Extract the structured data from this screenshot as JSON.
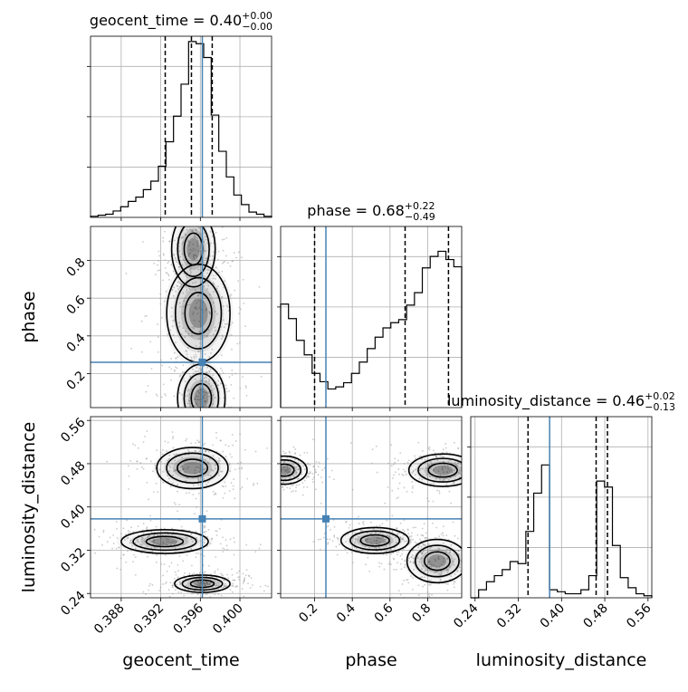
{
  "chart_data": {
    "type": "corner",
    "parameters": [
      "geocent_time",
      "phase",
      "luminosity_distance"
    ],
    "truths": {
      "geocent_time": 0.3962,
      "phase": 0.26,
      "luminosity_distance": 0.378
    },
    "colors": {
      "truth": "#4682b4",
      "line": "#000000",
      "grid": "#b0b0b0",
      "points": "#9e9e9e"
    },
    "titles": [
      {
        "param": "geocent_time",
        "prefix": "geocent_time = ",
        "median": "0.40",
        "plus": "+0.00",
        "minus": "−0.00"
      },
      {
        "param": "phase",
        "prefix": "phase = ",
        "median": "0.68",
        "plus": "+0.22",
        "minus": "−0.49"
      },
      {
        "param": "luminosity_distance",
        "prefix": "luminosity_distance = ",
        "median": "0.46",
        "plus": "+0.02",
        "minus": "−0.13"
      }
    ],
    "axes": {
      "geocent_time": {
        "range": [
          0.3849,
          0.4032
        ],
        "ticks": [
          "0.388",
          "0.392",
          "0.396",
          "0.400"
        ],
        "tick_values": [
          0.388,
          0.392,
          0.396,
          0.4
        ]
      },
      "phase": {
        "range": [
          0.02,
          0.98
        ],
        "ticks": [
          "0.2",
          "0.4",
          "0.6",
          "0.8"
        ],
        "tick_values": [
          0.2,
          0.4,
          0.6,
          0.8
        ]
      },
      "luminosity_distance": {
        "range": [
          0.232,
          0.567
        ],
        "ticks": [
          "0.24",
          "0.32",
          "0.40",
          "0.48",
          "0.56"
        ],
        "tick_values": [
          0.24,
          0.32,
          0.4,
          0.48,
          0.56
        ]
      }
    },
    "marginals": [
      {
        "param": "geocent_time",
        "quantiles": [
          0.39245,
          0.3951,
          0.3972
        ],
        "counts": [
          1,
          2,
          3,
          6,
          10,
          15,
          19,
          26,
          34,
          48,
          71,
          95,
          125,
          165,
          163,
          150,
          96,
          62,
          38,
          21,
          12,
          5,
          3,
          1
        ],
        "ymax": 170
      },
      {
        "param": "phase",
        "quantiles": [
          0.2,
          0.68,
          0.91
        ],
        "counts": [
          100,
          86,
          65,
          51,
          33,
          25,
          18,
          20,
          24,
          33,
          44,
          57,
          68,
          77,
          82,
          85,
          99,
          111,
          135,
          146,
          151,
          143,
          136
        ],
        "ymax": 175
      },
      {
        "param": "luminosity_distance",
        "quantiles": [
          0.338,
          0.464,
          0.485
        ],
        "counts": [
          0,
          4,
          8,
          11,
          14,
          18,
          17,
          33,
          52,
          66,
          4,
          3,
          2,
          2,
          4,
          11,
          58,
          55,
          26,
          10,
          5,
          2,
          1
        ],
        "ymax": 90
      }
    ],
    "joint": [
      {
        "x": "geocent_time",
        "y": "phase",
        "modes": [
          {
            "x": 0.3953,
            "y": 0.86,
            "sx": 0.0011,
            "sy": 0.1
          },
          {
            "x": 0.3958,
            "y": 0.52,
            "sx": 0.0016,
            "sy": 0.13
          },
          {
            "x": 0.3961,
            "y": 0.07,
            "sx": 0.0012,
            "sy": 0.09
          }
        ]
      },
      {
        "x": "geocent_time",
        "y": "luminosity_distance",
        "modes": [
          {
            "x": 0.3952,
            "y": 0.472,
            "sx": 0.0018,
            "sy": 0.019
          },
          {
            "x": 0.3924,
            "y": 0.336,
            "sx": 0.0022,
            "sy": 0.011
          },
          {
            "x": 0.3962,
            "y": 0.258,
            "sx": 0.0014,
            "sy": 0.008
          }
        ]
      },
      {
        "x": "phase",
        "y": "luminosity_distance",
        "modes": [
          {
            "x": 0.88,
            "y": 0.468,
            "sx": 0.09,
            "sy": 0.015
          },
          {
            "x": 0.04,
            "y": 0.468,
            "sx": 0.06,
            "sy": 0.013
          },
          {
            "x": 0.52,
            "y": 0.338,
            "sx": 0.09,
            "sy": 0.012
          },
          {
            "x": 0.85,
            "y": 0.3,
            "sx": 0.08,
            "sy": 0.02
          }
        ]
      }
    ]
  }
}
